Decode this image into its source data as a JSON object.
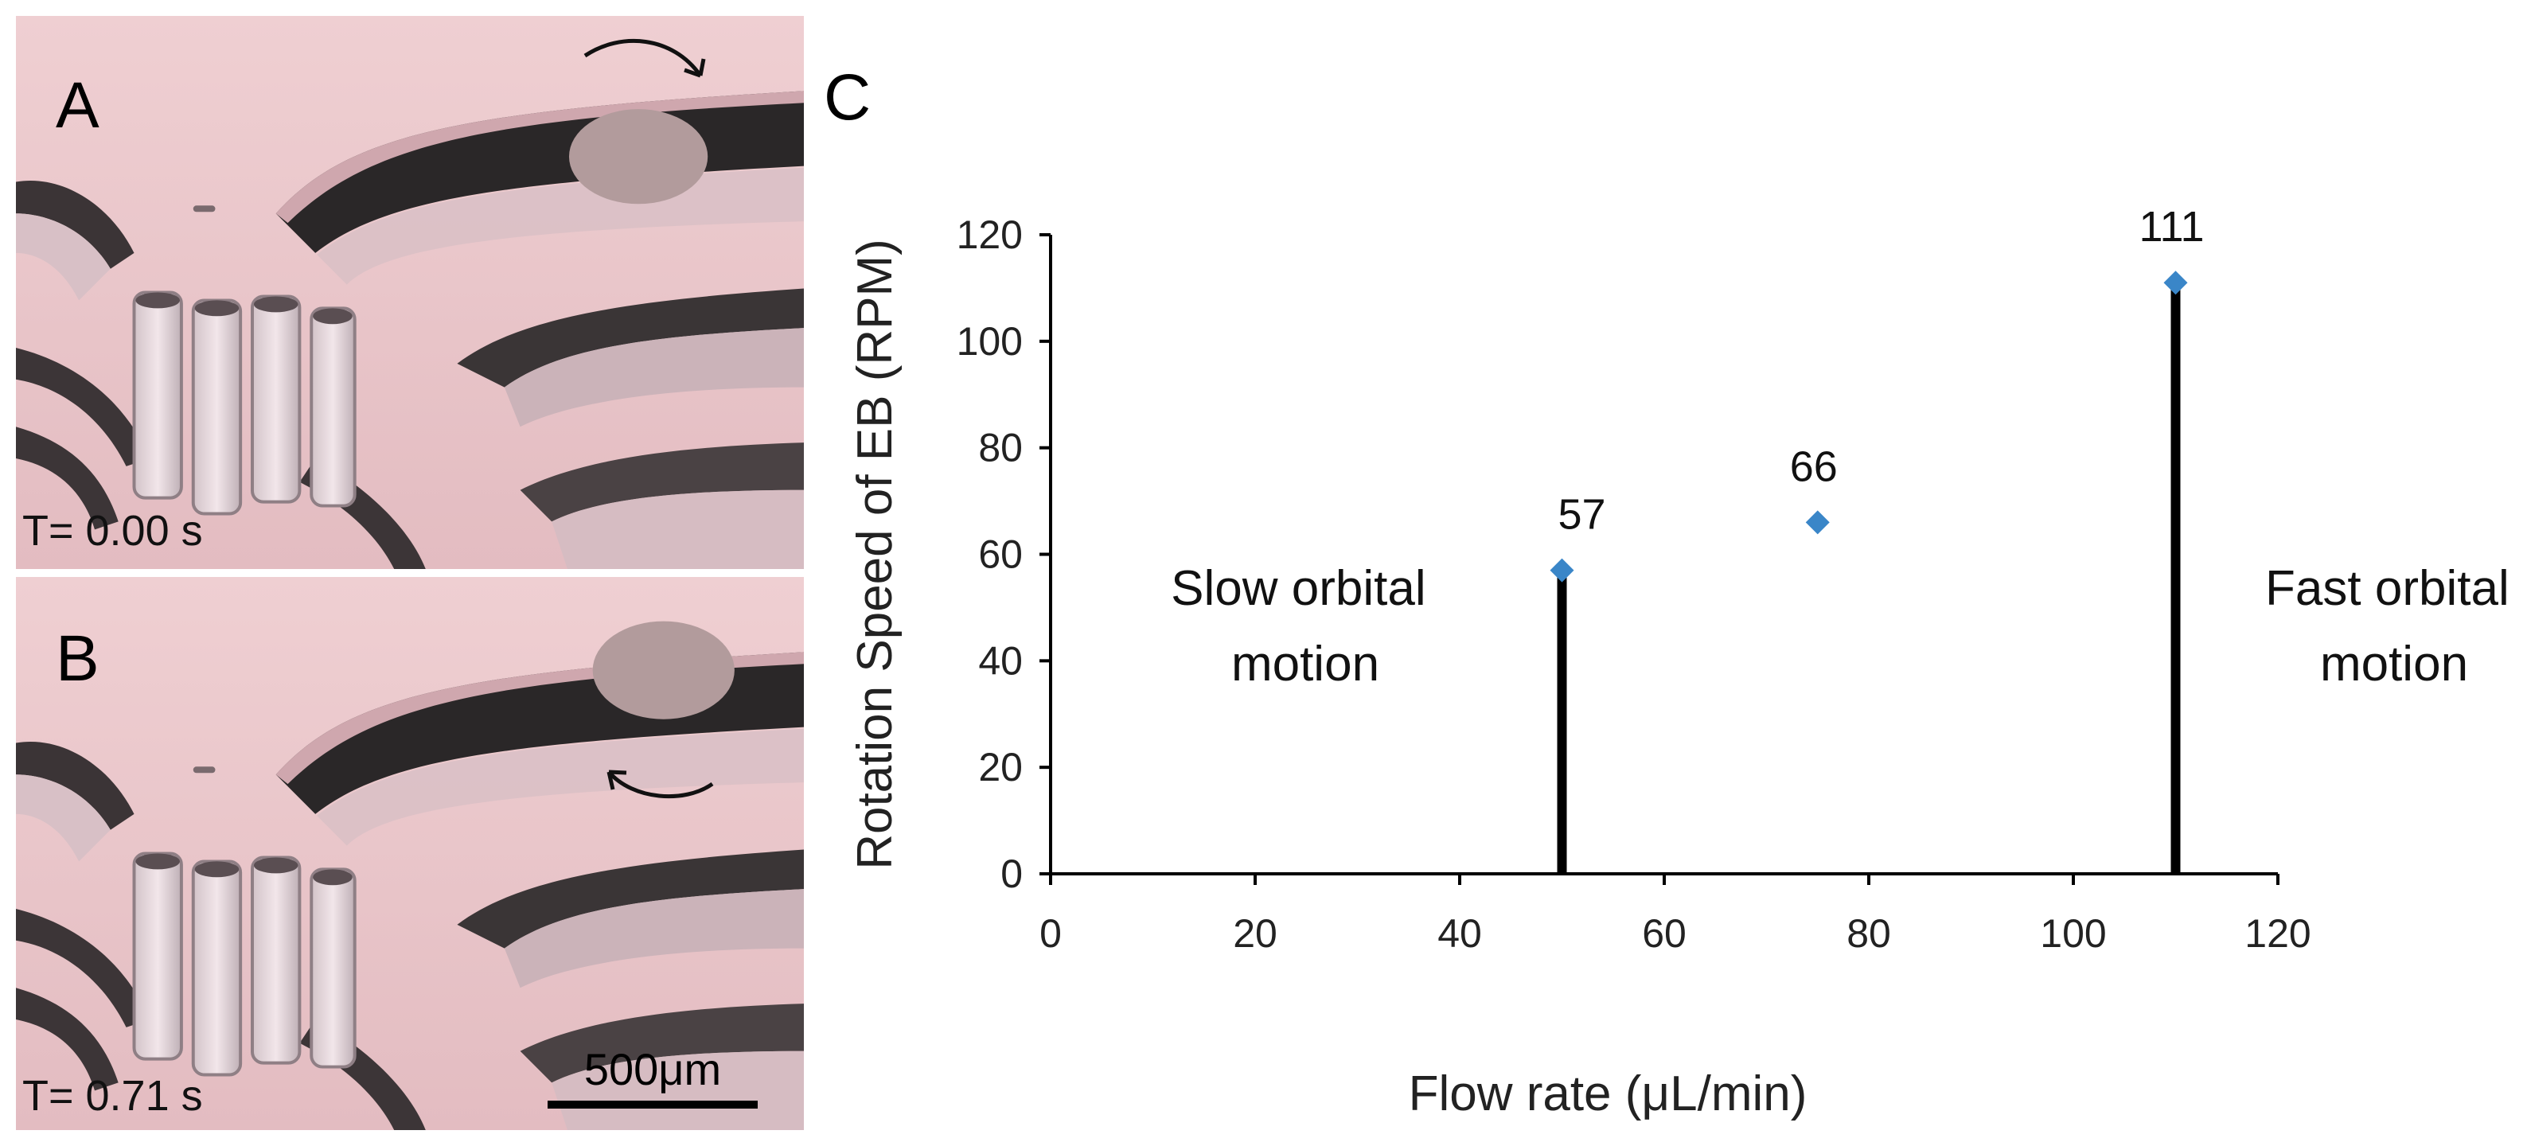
{
  "panels": {
    "a": {
      "letter": "A",
      "time": "T= 0.00 s"
    },
    "b": {
      "letter": "B",
      "time": "T= 0.71 s"
    },
    "c": {
      "letter": "C"
    },
    "scale_bar": "500μm"
  },
  "colors": {
    "marker": "#3a86c8",
    "threshold_line": "#000000",
    "image_background": "#e8c4c8",
    "dark_channel": "#232223",
    "embryoid_body": "#b29b9c"
  },
  "chart_data": {
    "type": "scatter",
    "xlabel": "Flow rate (μL/min)",
    "ylabel": "Rotation Speed of EB (RPM)",
    "xlim": [
      0,
      120
    ],
    "ylim": [
      0,
      120
    ],
    "x_ticks": [
      0,
      20,
      40,
      60,
      80,
      100,
      120
    ],
    "y_ticks": [
      0,
      20,
      40,
      60,
      80,
      100,
      120
    ],
    "grid": false,
    "series": [
      {
        "x": [
          50,
          75,
          110
        ],
        "y": [
          57,
          66,
          111
        ],
        "labels": [
          "57",
          "66",
          "111"
        ]
      }
    ],
    "threshold_lines": [
      {
        "x": 50,
        "y_top": 57
      },
      {
        "x": 110,
        "y_top": 111
      }
    ],
    "annotations": [
      {
        "lines": [
          "Slow orbital",
          "motion"
        ],
        "position": "left"
      },
      {
        "lines": [
          "Fast orbital",
          "motion"
        ],
        "position": "right"
      }
    ]
  }
}
